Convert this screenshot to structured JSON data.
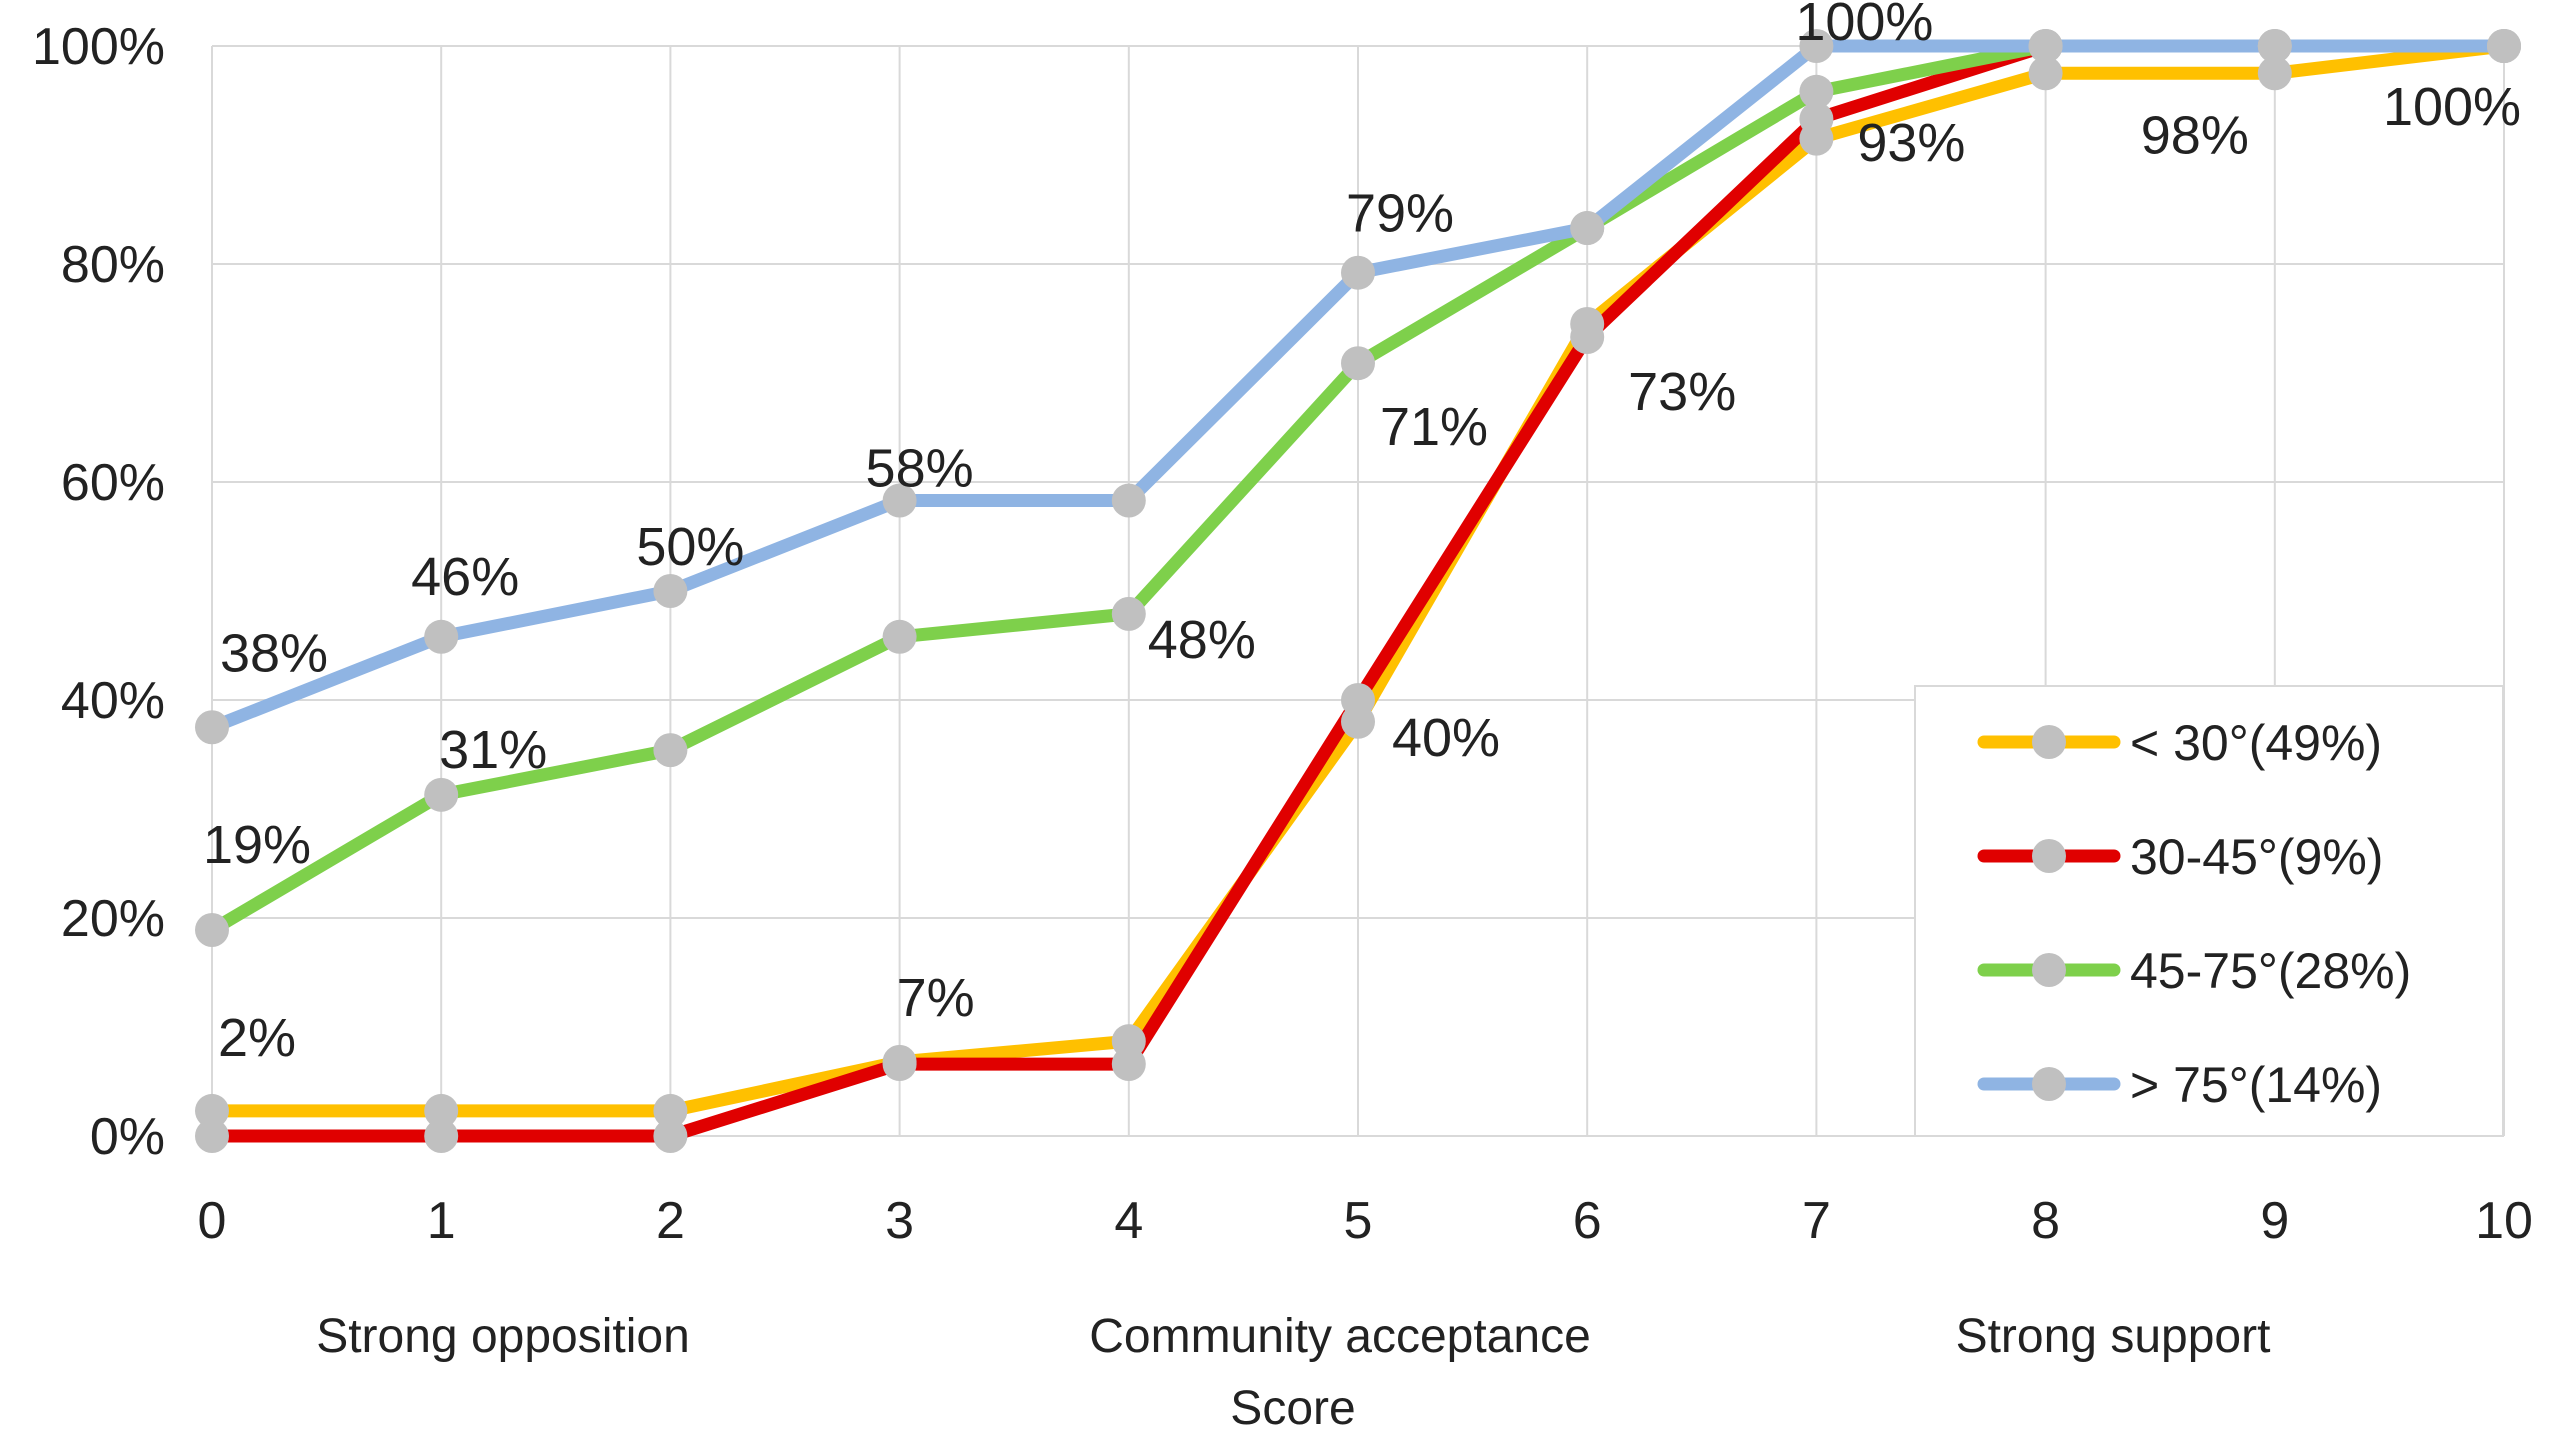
{
  "chart_data": {
    "type": "line",
    "title": "",
    "xlabel_line1": "Community acceptance",
    "xlabel_line2": "Score",
    "x_annotation_left": "Strong opposition",
    "x_annotation_right": "Strong support",
    "x": [
      0,
      1,
      2,
      3,
      4,
      5,
      6,
      7,
      8,
      9,
      10
    ],
    "x_tick_labels": [
      "0",
      "1",
      "2",
      "3",
      "4",
      "5",
      "6",
      "7",
      "8",
      "9",
      "10"
    ],
    "y_tick_labels": [
      "0%",
      "20%",
      "40%",
      "60%",
      "80%",
      "100%"
    ],
    "ylim": [
      0,
      100
    ],
    "xlim": [
      0,
      10
    ],
    "grid": true,
    "legend_position": "right-bottom",
    "series": [
      {
        "name": "< 30°(49%)",
        "color": "#ffc000",
        "values": [
          2.3,
          2.3,
          2.3,
          6.8,
          8.7,
          38.0,
          74.5,
          91.5,
          97.5,
          97.5,
          100
        ]
      },
      {
        "name": "30-45°(9%)",
        "color": "#e00000",
        "values": [
          0,
          0,
          0,
          6.6,
          6.6,
          40.0,
          73.3,
          93.3,
          100,
          100,
          100
        ]
      },
      {
        "name": "45-75°(28%)",
        "color": "#7ed04b",
        "values": [
          18.9,
          31.3,
          35.4,
          45.8,
          47.9,
          70.9,
          83.3,
          95.8,
          100,
          100,
          100
        ]
      },
      {
        "name": "> 75°(14%)",
        "color": "#8fb4e3",
        "values": [
          37.5,
          45.8,
          50.0,
          58.3,
          58.3,
          79.2,
          83.3,
          100,
          100,
          100,
          100
        ]
      }
    ],
    "data_labels": [
      {
        "text": "38%",
        "x": 0,
        "y": 37.5
      },
      {
        "text": "46%",
        "x": 1,
        "y": 45.8
      },
      {
        "text": "50%",
        "x": 2,
        "y": 50.0
      },
      {
        "text": "58%",
        "x": 3,
        "y": 58.3
      },
      {
        "text": "79%",
        "x": 5,
        "y": 79.2
      },
      {
        "text": "100%",
        "x": 7,
        "y": 100
      },
      {
        "text": "19%",
        "x": 0,
        "y": 18.9
      },
      {
        "text": "31%",
        "x": 1,
        "y": 31.3
      },
      {
        "text": "48%",
        "x": 4,
        "y": 47.9
      },
      {
        "text": "71%",
        "x": 5,
        "y": 70.9
      },
      {
        "text": "2%",
        "x": 0,
        "y": 2.3
      },
      {
        "text": "7%",
        "x": 3,
        "y": 6.6
      },
      {
        "text": "40%",
        "x": 5,
        "y": 40.0
      },
      {
        "text": "73%",
        "x": 6,
        "y": 73.3
      },
      {
        "text": "93%",
        "x": 7,
        "y": 93.3
      },
      {
        "text": "98%",
        "x": 9,
        "y": 97.5
      },
      {
        "text": "100%",
        "x": 10,
        "y": 100
      }
    ],
    "marker_color": "#c0c0c0",
    "grid_color": "#d9d9d9",
    "text_color": "#222222"
  }
}
